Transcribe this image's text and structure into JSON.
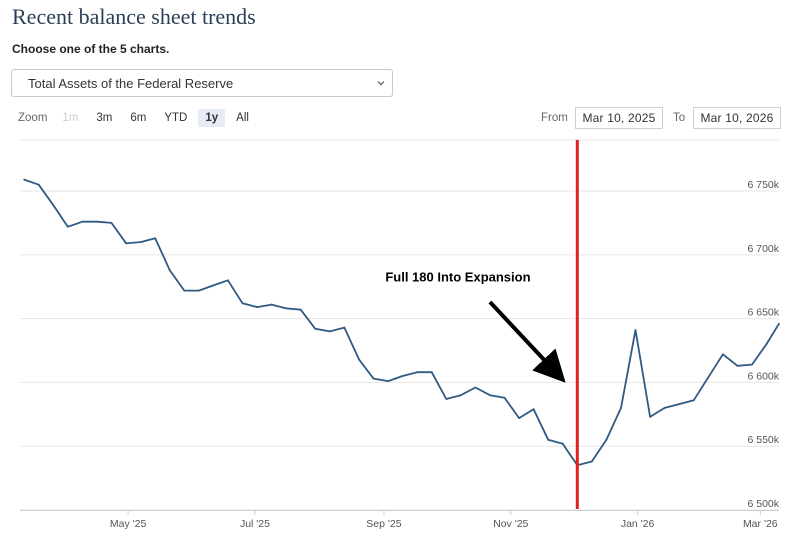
{
  "header": {
    "title": "Recent balance sheet trends",
    "subtitle": "Choose one of the 5 charts."
  },
  "select": {
    "value": "Total Assets of the Federal Reserve"
  },
  "zoom": {
    "label": "Zoom",
    "buttons": [
      "1m",
      "3m",
      "6m",
      "YTD",
      "1y",
      "All"
    ],
    "active": "1y",
    "disabled": [
      "1m"
    ]
  },
  "range": {
    "from_label": "From",
    "from_value": "Mar 10, 2025",
    "to_label": "To",
    "to_value": "Mar 10, 2026"
  },
  "chart_data": {
    "type": "line",
    "title": "Total Assets of the Federal Reserve",
    "ylim": [
      6500,
      6790
    ],
    "xlim": [
      "2025-03-10",
      "2026-03-10"
    ],
    "y_ticks": [
      6500,
      6550,
      6600,
      6650,
      6700,
      6750
    ],
    "y_tick_labels": [
      "6 500k",
      "6 550k",
      "6 600k",
      "6 650k",
      "6 700k",
      "6 750k"
    ],
    "x_ticks": [
      {
        "date": "2025-05-01",
        "label": "May '25"
      },
      {
        "date": "2025-07-01",
        "label": "Jul '25"
      },
      {
        "date": "2025-09-01",
        "label": "Sep '25"
      },
      {
        "date": "2025-11-01",
        "label": "Nov '25"
      },
      {
        "date": "2026-01-01",
        "label": "Jan '26"
      },
      {
        "date": "2026-03-01",
        "label": "Mar '26"
      }
    ],
    "series": [
      {
        "name": "Total Assets",
        "color": "#2f5a82",
        "points": [
          [
            "2025-03-12",
            6759
          ],
          [
            "2025-03-19",
            6755
          ],
          [
            "2025-03-26",
            6739
          ],
          [
            "2025-04-02",
            6722
          ],
          [
            "2025-04-09",
            6726
          ],
          [
            "2025-04-16",
            6726
          ],
          [
            "2025-04-23",
            6725
          ],
          [
            "2025-04-30",
            6709
          ],
          [
            "2025-05-07",
            6710
          ],
          [
            "2025-05-14",
            6713
          ],
          [
            "2025-05-21",
            6688
          ],
          [
            "2025-05-28",
            6672
          ],
          [
            "2025-06-04",
            6672
          ],
          [
            "2025-06-11",
            6676
          ],
          [
            "2025-06-18",
            6680
          ],
          [
            "2025-06-25",
            6662
          ],
          [
            "2025-07-02",
            6659
          ],
          [
            "2025-07-09",
            6661
          ],
          [
            "2025-07-16",
            6658
          ],
          [
            "2025-07-23",
            6657
          ],
          [
            "2025-07-30",
            6642
          ],
          [
            "2025-08-06",
            6640
          ],
          [
            "2025-08-13",
            6643
          ],
          [
            "2025-08-20",
            6618
          ],
          [
            "2025-08-27",
            6603
          ],
          [
            "2025-09-03",
            6601
          ],
          [
            "2025-09-10",
            6605
          ],
          [
            "2025-09-17",
            6608
          ],
          [
            "2025-09-24",
            6608
          ],
          [
            "2025-10-01",
            6587
          ],
          [
            "2025-10-08",
            6590
          ],
          [
            "2025-10-15",
            6596
          ],
          [
            "2025-10-22",
            6590
          ],
          [
            "2025-10-29",
            6588
          ],
          [
            "2025-11-05",
            6572
          ],
          [
            "2025-11-12",
            6579
          ],
          [
            "2025-11-19",
            6555
          ],
          [
            "2025-11-26",
            6552
          ],
          [
            "2025-12-03",
            6535
          ],
          [
            "2025-12-10",
            6538
          ],
          [
            "2025-12-17",
            6555
          ],
          [
            "2025-12-24",
            6580
          ],
          [
            "2025-12-31",
            6641
          ],
          [
            "2026-01-07",
            6573
          ],
          [
            "2026-01-14",
            6580
          ],
          [
            "2026-01-21",
            6583
          ],
          [
            "2026-01-28",
            6586
          ],
          [
            "2026-02-04",
            6604
          ],
          [
            "2026-02-11",
            6622
          ],
          [
            "2026-02-18",
            6613
          ],
          [
            "2026-02-25",
            6614
          ],
          [
            "2026-03-04",
            6630
          ],
          [
            "2026-03-10",
            6646
          ]
        ]
      }
    ],
    "annotations": {
      "text": "Full 180 Into Expansion",
      "vline_date": "2025-12-03",
      "vline_color": "#e02020",
      "arrow_color": "#000000",
      "arrow_tip": {
        "date": "2025-11-26",
        "value": 6601
      },
      "arrow_tail": {
        "date": "2025-10-22",
        "value": 6663
      },
      "text_anchor": {
        "date": "2025-10-22",
        "value": 6679
      }
    }
  }
}
